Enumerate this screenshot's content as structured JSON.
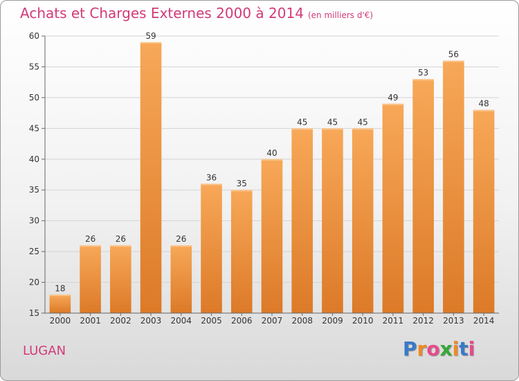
{
  "header": {
    "title": "Achats et Charges Externes 2000 à 2014",
    "unit": "(en milliers d'€)"
  },
  "footer": {
    "commune": "LUGAN",
    "logo": [
      "P",
      "r",
      "o",
      "x",
      "i",
      "t",
      "i"
    ]
  },
  "colors": {
    "title": "#d23a78",
    "bar_top": "#f7a858",
    "bar_bottom": "#dc7a28",
    "logo": [
      "#3a7ac8",
      "#f08a24",
      "#e84a8a",
      "#38a838",
      "#f08a24",
      "#3a7ac8",
      "#e84a8a"
    ]
  },
  "chart_data": {
    "type": "bar",
    "title": "Achats et Charges Externes 2000 à 2014",
    "subtitle": "(en milliers d'€)",
    "categories": [
      "2000",
      "2001",
      "2002",
      "2003",
      "2004",
      "2005",
      "2006",
      "2007",
      "2008",
      "2009",
      "2010",
      "2011",
      "2012",
      "2013",
      "2014"
    ],
    "values": [
      18,
      26,
      26,
      59,
      26,
      36,
      35,
      40,
      45,
      45,
      45,
      49,
      53,
      56,
      48
    ],
    "ylim": [
      15,
      60
    ],
    "yticks": [
      15,
      20,
      25,
      30,
      35,
      40,
      45,
      50,
      55,
      60
    ],
    "grid": true,
    "xlabel": "",
    "ylabel": ""
  }
}
